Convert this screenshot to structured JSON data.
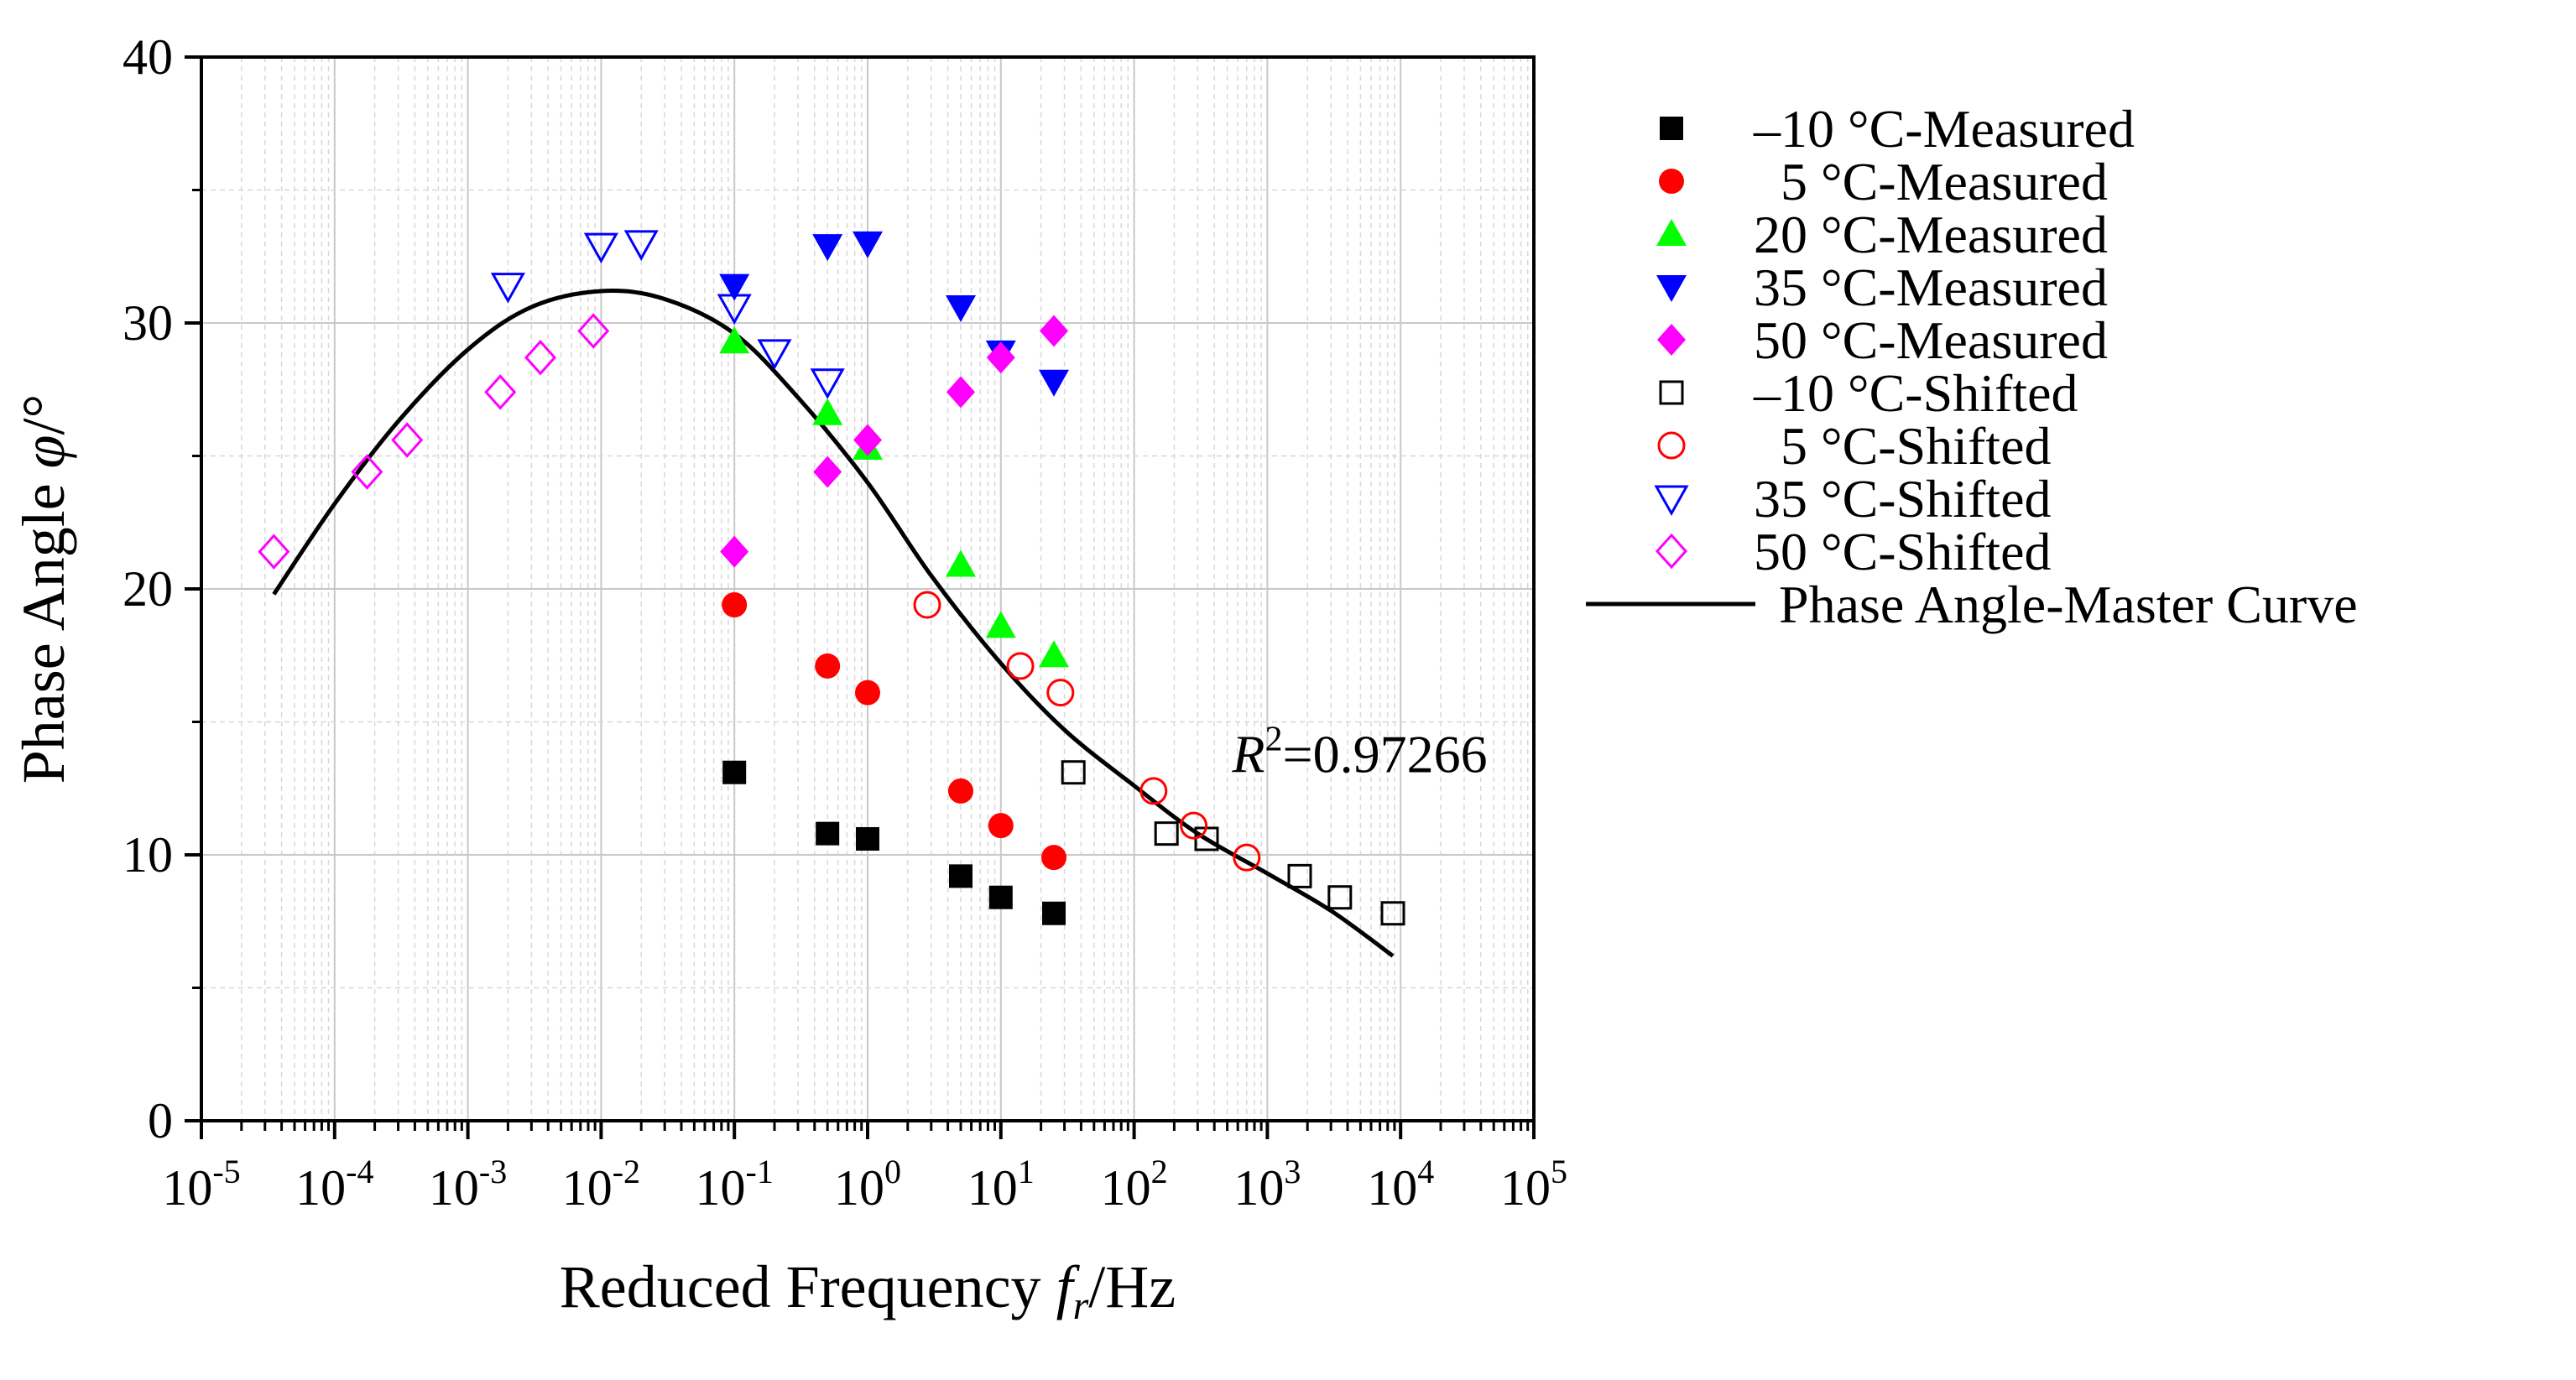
{
  "chart_data": {
    "type": "scatter",
    "xlabel_main": "Reduced Frequency ",
    "xlabel_var": "f",
    "xlabel_sub": "r",
    "xlabel_unit": "/Hz",
    "ylabel_main": "Phase Angle ",
    "ylabel_var": "φ",
    "ylabel_unit": "/°",
    "x_scale": "log",
    "xlim": [
      1e-05,
      100000
    ],
    "ylim": [
      0,
      40
    ],
    "y_ticks": [
      "0",
      "10",
      "20",
      "30",
      "40"
    ],
    "x_tick_exponents": [
      "-5",
      "-4",
      "-3",
      "-2",
      "-1",
      "0",
      "1",
      "2",
      "3",
      "4",
      "5"
    ],
    "x_tick_base": "10",
    "grid": true,
    "legend_position": "right",
    "annotation": {
      "main": "R",
      "sup": "2",
      "rest": "=0.97266",
      "x": 1000,
      "y": 13.8
    },
    "series": [
      {
        "name": "–10 °C-Measured",
        "marker": "square",
        "filled": true,
        "color": "#000000",
        "points": [
          [
            0.1,
            13.1
          ],
          [
            0.5,
            10.8
          ],
          [
            1,
            10.6
          ],
          [
            5,
            9.2
          ],
          [
            10,
            8.4
          ],
          [
            25,
            7.8
          ]
        ]
      },
      {
        "name": "  5 °C-Measured",
        "marker": "circle",
        "filled": true,
        "color": "#ff0000",
        "points": [
          [
            0.1,
            19.4
          ],
          [
            0.5,
            17.1
          ],
          [
            1,
            16.1
          ],
          [
            5,
            12.4
          ],
          [
            10,
            11.1
          ],
          [
            25,
            9.9
          ]
        ]
      },
      {
        "name": "20 °C-Measured",
        "marker": "triangle-up",
        "filled": true,
        "color": "#00ff00",
        "points": [
          [
            0.1,
            29.3
          ],
          [
            0.5,
            26.6
          ],
          [
            1,
            25.3
          ],
          [
            5,
            20.9
          ],
          [
            10,
            18.6
          ],
          [
            25,
            17.5
          ]
        ]
      },
      {
        "name": "35 °C-Measured",
        "marker": "triangle-down",
        "filled": true,
        "color": "#0000ff",
        "points": [
          [
            0.1,
            31.4
          ],
          [
            0.5,
            32.9
          ],
          [
            1,
            33.0
          ],
          [
            5,
            30.6
          ],
          [
            10,
            28.9
          ],
          [
            25,
            27.8
          ]
        ]
      },
      {
        "name": "50 °C-Measured",
        "marker": "diamond",
        "filled": true,
        "color": "#ff00ff",
        "points": [
          [
            0.1,
            21.4
          ],
          [
            0.5,
            24.4
          ],
          [
            1,
            25.6
          ],
          [
            5,
            27.4
          ],
          [
            10,
            28.7
          ],
          [
            25,
            29.7
          ]
        ]
      },
      {
        "name": "–10 °C-Shifted",
        "marker": "square",
        "filled": false,
        "color": "#000000",
        "points": [
          [
            35,
            13.1
          ],
          [
            175,
            10.8
          ],
          [
            350,
            10.6
          ],
          [
            1750,
            9.2
          ],
          [
            3500,
            8.4
          ],
          [
            8750,
            7.8
          ]
        ]
      },
      {
        "name": "  5 °C-Shifted",
        "marker": "circle",
        "filled": false,
        "color": "#ff0000",
        "points": [
          [
            2.8,
            19.4
          ],
          [
            14,
            17.1
          ],
          [
            28,
            16.1
          ],
          [
            140,
            12.4
          ],
          [
            280,
            11.1
          ],
          [
            700,
            9.9
          ]
        ]
      },
      {
        "name": "35 °C-Shifted",
        "marker": "triangle-down",
        "filled": false,
        "color": "#0000ff",
        "points": [
          [
            0.002,
            31.4
          ],
          [
            0.01,
            32.9
          ],
          [
            0.02,
            33.0
          ],
          [
            0.1,
            30.6
          ],
          [
            0.2,
            28.9
          ],
          [
            0.5,
            27.8
          ]
        ]
      },
      {
        "name": "50 °C-Shifted",
        "marker": "diamond",
        "filled": false,
        "color": "#ff00ff",
        "points": [
          [
            3.5e-05,
            21.4
          ],
          [
            0.000175,
            24.4
          ],
          [
            0.00035,
            25.6
          ],
          [
            0.00175,
            27.4
          ],
          [
            0.0035,
            28.7
          ],
          [
            0.00875,
            29.7
          ]
        ]
      }
    ],
    "master_curve": {
      "name": "Phase Angle-Master Curve",
      "color": "#000000",
      "points": [
        [
          3.5e-05,
          19.8
        ],
        [
          0.0001,
          23.2
        ],
        [
          0.0003,
          26.3
        ],
        [
          0.001,
          29.0
        ],
        [
          0.003,
          30.6
        ],
        [
          0.01,
          31.2
        ],
        [
          0.03,
          30.9
        ],
        [
          0.1,
          29.6
        ],
        [
          0.3,
          27.2
        ],
        [
          1,
          24.0
        ],
        [
          3,
          20.5
        ],
        [
          10,
          17.2
        ],
        [
          30,
          14.7
        ],
        [
          100,
          12.6
        ],
        [
          300,
          10.8
        ],
        [
          1000,
          9.3
        ],
        [
          3000,
          7.9
        ],
        [
          8750,
          6.2
        ]
      ]
    }
  }
}
